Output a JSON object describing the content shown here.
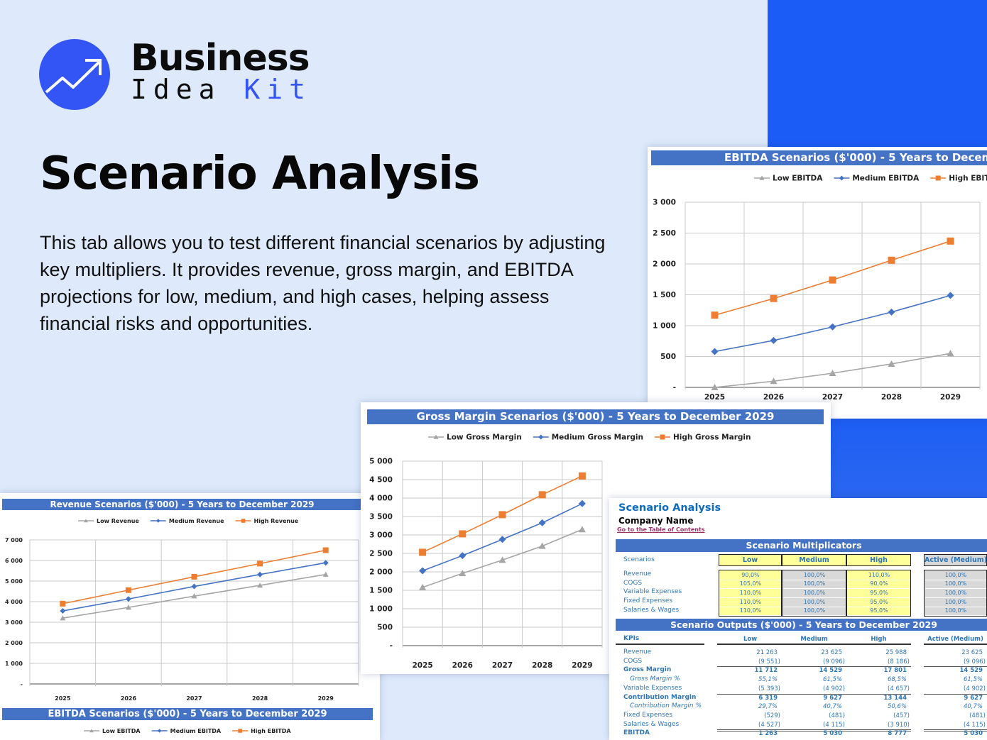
{
  "brand": {
    "word1": "Business",
    "word2a": "Idea",
    "word2b": "Kit",
    "color": "#3355f5"
  },
  "hero": {
    "title": "Scenario Analysis",
    "description": "This tab allows you to test different financial scenarios by adjusting key multipliers. It provides revenue, gross margin, and EBITDA projections for low, medium, and high cases, helping assess financial risks and opportunities."
  },
  "colors": {
    "title_bar": "#4472c4",
    "low": "#a5a5a5",
    "medium": "#4472c4",
    "high": "#ed7d31",
    "accent": "#1a5cf5"
  },
  "chart_data": [
    {
      "type": "line",
      "title": "Revenue Scenarios ($'000) - 5 Years to December 2029",
      "categories": [
        "2025",
        "2026",
        "2027",
        "2028",
        "2029"
      ],
      "ylim": [
        0,
        7000
      ],
      "yticks": [
        "-",
        "1 000",
        "2 000",
        "3 000",
        "4 000",
        "5 000",
        "6 000",
        "7 000"
      ],
      "grid": true,
      "legend": "top",
      "series": [
        {
          "name": "Low Revenue",
          "values": [
            3200,
            3720,
            4270,
            4790,
            5320
          ]
        },
        {
          "name": "Medium Revenue",
          "values": [
            3550,
            4130,
            4740,
            5320,
            5890
          ]
        },
        {
          "name": "High Revenue",
          "values": [
            3900,
            4560,
            5210,
            5850,
            6500
          ]
        }
      ]
    },
    {
      "type": "line",
      "title": "Gross Margin Scenarios ($'000) - 5 Years to December 2029",
      "categories": [
        "2025",
        "2026",
        "2027",
        "2028",
        "2029"
      ],
      "ylim": [
        0,
        5000
      ],
      "yticks": [
        "-",
        "500",
        "1 000",
        "1 500",
        "2 000",
        "2 500",
        "3 000",
        "3 500",
        "4 000",
        "4 500",
        "5 000"
      ],
      "grid": true,
      "legend": "top",
      "series": [
        {
          "name": "Low Gross Margin",
          "values": [
            1580,
            1960,
            2320,
            2700,
            3150
          ]
        },
        {
          "name": "Medium Gross Margin",
          "values": [
            2030,
            2440,
            2880,
            3330,
            3850
          ]
        },
        {
          "name": "High Gross Margin",
          "values": [
            2530,
            3030,
            3550,
            4090,
            4600
          ]
        }
      ]
    },
    {
      "type": "line",
      "title": "EBITDA Scenarios ($'000) - 5 Years to December 2029",
      "categories": [
        "2025",
        "2026",
        "2027",
        "2028",
        "2029"
      ],
      "ylim": [
        0,
        3000
      ],
      "yticks": [
        "-",
        "500",
        "1 000",
        "1 500",
        "2 000",
        "2 500",
        "3 000"
      ],
      "grid": true,
      "legend": "top",
      "series": [
        {
          "name": "Low EBITDA",
          "values": [
            0,
            100,
            230,
            380,
            550
          ]
        },
        {
          "name": "Medium EBITDA",
          "values": [
            580,
            760,
            980,
            1220,
            1490
          ]
        },
        {
          "name": "High EBITDA",
          "values": [
            1170,
            1440,
            1740,
            2060,
            2370
          ]
        }
      ]
    }
  ],
  "ebitda_footer": {
    "title": "EBITDA Scenarios ($'000) - 5 Years to December 2029",
    "legend": [
      "Low EBITDA",
      "Medium EBITDA",
      "High EBITDA"
    ]
  },
  "sheet": {
    "title": "Scenario Analysis",
    "company": "Company Name",
    "toc_link": "Go to the Table of Contents",
    "multipliers_title": "Scenario Multiplicators",
    "scenarios_label": "Scenarios",
    "columns": [
      "Low",
      "Medium",
      "High",
      "Active (Medium)"
    ],
    "multipliers": [
      {
        "label": "Revenue",
        "values": [
          "90,0%",
          "100,0%",
          "110,0%",
          "100,0%"
        ]
      },
      {
        "label": "COGS",
        "values": [
          "105,0%",
          "100,0%",
          "90,0%",
          "100,0%"
        ]
      },
      {
        "label": "Variable Expenses",
        "values": [
          "110,0%",
          "100,0%",
          "95,0%",
          "100,0%"
        ]
      },
      {
        "label": "Fixed Expenses",
        "values": [
          "110,0%",
          "100,0%",
          "95,0%",
          "100,0%"
        ]
      },
      {
        "label": "Salaries & Wages",
        "values": [
          "110,0%",
          "100,0%",
          "95,0%",
          "100,0%"
        ]
      }
    ],
    "outputs_title": "Scenario Outputs ($'000) - 5 Years to December 2029",
    "kpis_label": "KPIs",
    "outputs": [
      {
        "label": "Revenue",
        "style": "normal",
        "values": [
          "21 263",
          "23 625",
          "25 988",
          "23 625"
        ]
      },
      {
        "label": "COGS",
        "style": "normal",
        "values": [
          "(9 551)",
          "(9 096)",
          "(8 186)",
          "(9 096)"
        ]
      },
      {
        "label": "Gross Margin",
        "style": "bold",
        "values": [
          "11 712",
          "14 529",
          "17 801",
          "14 529"
        ]
      },
      {
        "label": "Gross Margin %",
        "style": "italic",
        "values": [
          "55,1%",
          "61,5%",
          "68,5%",
          "61,5%"
        ]
      },
      {
        "label": "Variable Expenses",
        "style": "normal",
        "values": [
          "(5 393)",
          "(4 902)",
          "(4 657)",
          "(4 902)"
        ]
      },
      {
        "label": "Contribution Margin",
        "style": "bold",
        "values": [
          "6 319",
          "9 627",
          "13 144",
          "9 627"
        ]
      },
      {
        "label": "Contribution Margin %",
        "style": "italic",
        "values": [
          "29,7%",
          "40,7%",
          "50,6%",
          "40,7%"
        ]
      },
      {
        "label": "Fixed Expenses",
        "style": "normal",
        "values": [
          "(529)",
          "(481)",
          "(457)",
          "(481)"
        ]
      },
      {
        "label": "Salaries & Wages",
        "style": "normal",
        "values": [
          "(4 527)",
          "(4 115)",
          "(3 910)",
          "(4 115)"
        ]
      },
      {
        "label": "EBITDA",
        "style": "bold",
        "values": [
          "1 263",
          "5 030",
          "8 777",
          "5 030"
        ]
      }
    ]
  }
}
